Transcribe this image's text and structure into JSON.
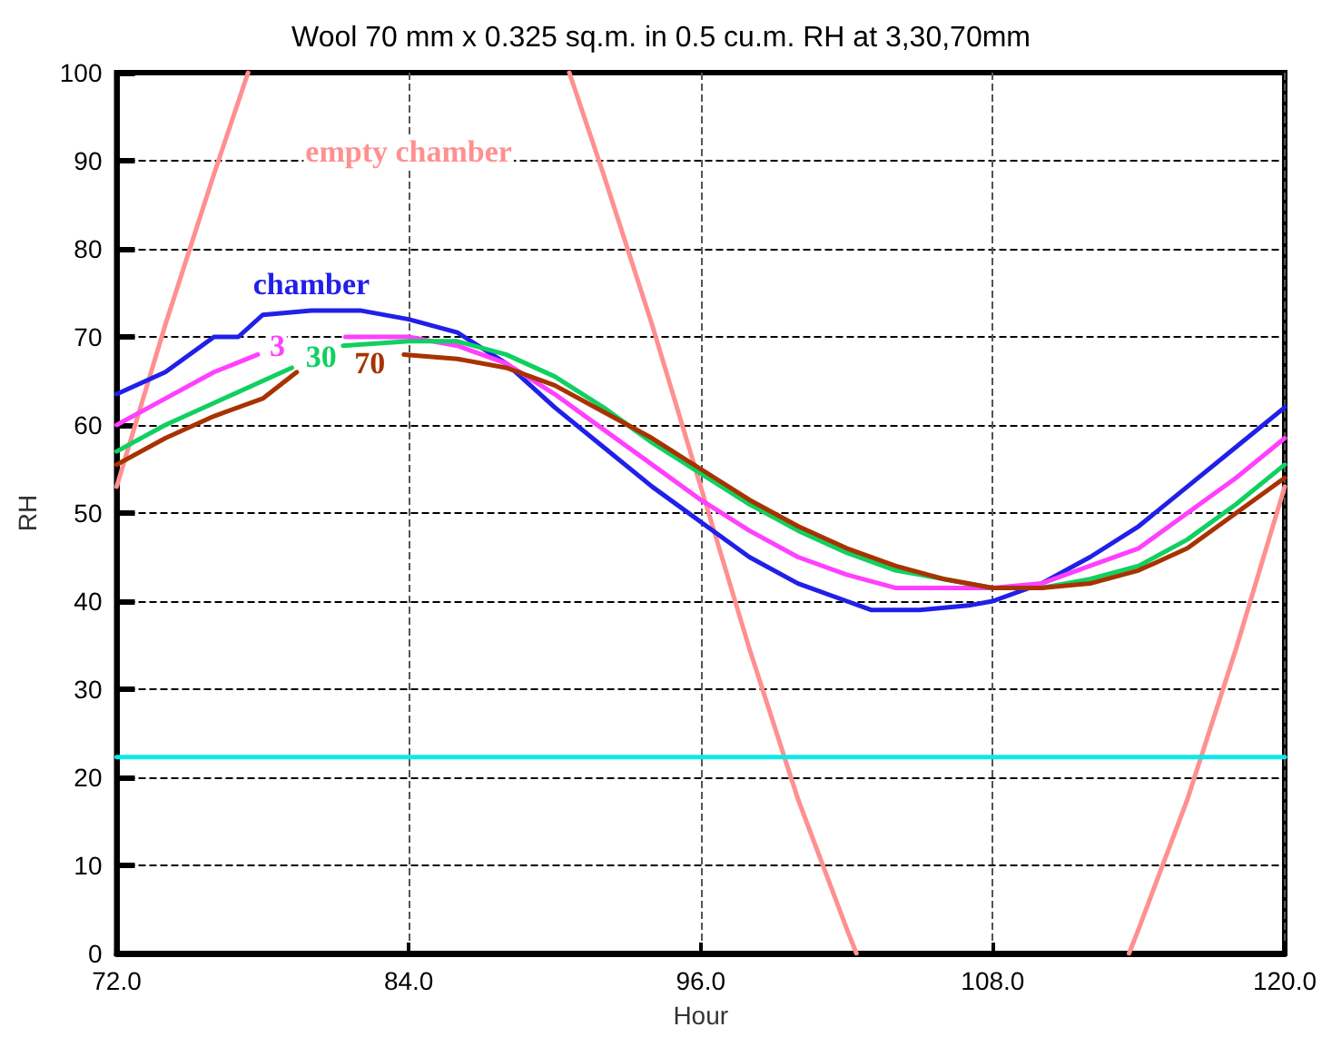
{
  "chart_data": {
    "type": "line",
    "title": "Wool 70 mm x 0.325 sq.m. in 0.5 cu.m. RH at 3,30,70mm",
    "xlabel": "Hour",
    "ylabel": "RH",
    "xlim": [
      72,
      120
    ],
    "xticks": [
      {
        "value": 72,
        "label": "72.0"
      },
      {
        "value": 84,
        "label": "84.0"
      },
      {
        "value": 96,
        "label": "96.0"
      },
      {
        "value": 108,
        "label": "108.0"
      },
      {
        "value": 120,
        "label": "120.0"
      }
    ],
    "ylim": [
      0,
      100
    ],
    "yticks": [
      0,
      10,
      20,
      30,
      40,
      50,
      60,
      70,
      80,
      90,
      100
    ],
    "grid": true,
    "legend": false,
    "marker": "none",
    "line_style": "solid",
    "series": [
      {
        "name": "empty chamber",
        "color": "#ff9090",
        "x": [
          72,
          74,
          76,
          77.4,
          84,
          90.6,
          92,
          94,
          96,
          98,
          100,
          102,
          102.4,
          108,
          113.6,
          114,
          116,
          118,
          120
        ],
        "values": [
          53,
          71.4,
          88.5,
          100,
          null,
          100,
          88.5,
          71.4,
          53,
          34.6,
          17.5,
          2.8,
          0,
          null,
          0,
          2.8,
          17.5,
          34.6,
          53
        ]
      },
      {
        "name": "chamber",
        "color": "#2020e8",
        "x": [
          72,
          74,
          76,
          77,
          78,
          80,
          82,
          84,
          86,
          88,
          90,
          92,
          94,
          96,
          98,
          100,
          102,
          103,
          105,
          107,
          108,
          110,
          112,
          114,
          116,
          118,
          120
        ],
        "values": [
          63.5,
          66,
          70,
          70,
          72.5,
          73,
          73,
          72,
          70.5,
          67,
          62,
          57.5,
          53,
          49,
          45,
          42,
          40,
          39,
          39,
          39.5,
          40,
          42,
          45,
          48.5,
          53,
          57.5,
          62
        ]
      },
      {
        "name": "3",
        "color": "#ff40ff",
        "x": [
          72,
          74,
          76,
          77.8,
          78.6,
          81.4,
          84,
          86,
          88,
          90,
          92,
          94,
          96,
          98,
          100,
          102,
          104,
          106,
          108,
          110,
          112,
          114,
          116,
          118,
          120
        ],
        "values": [
          60,
          63,
          66,
          68,
          null,
          70,
          70,
          69,
          67,
          63.5,
          59.5,
          55.5,
          51.5,
          48,
          45,
          43,
          41.5,
          41.5,
          41.5,
          42,
          44,
          46,
          50,
          54,
          58.5
        ]
      },
      {
        "name": "30",
        "color": "#10d060",
        "x": [
          72,
          74,
          76,
          78,
          79.2,
          80.4,
          81.3,
          84,
          86,
          88,
          90,
          92,
          94,
          96,
          98,
          100,
          102,
          104,
          106,
          108,
          110,
          112,
          114,
          116,
          118,
          120
        ],
        "values": [
          57,
          60,
          62.5,
          65,
          66.5,
          null,
          69,
          69.5,
          69.5,
          68,
          65.5,
          62,
          58,
          54.5,
          51,
          48,
          45.5,
          43.5,
          42.5,
          41.5,
          41.5,
          42.5,
          44,
          47,
          51,
          55.5
        ]
      },
      {
        "name": "70",
        "color": "#a83200",
        "x": [
          72,
          74,
          76,
          78,
          79.4,
          82.4,
          83.8,
          86,
          88,
          90,
          92,
          94,
          96,
          98,
          100,
          102,
          104,
          106,
          108,
          110,
          112,
          114,
          116,
          118,
          120
        ],
        "values": [
          55.5,
          58.5,
          61,
          63,
          66,
          null,
          68,
          67.5,
          66.5,
          64.5,
          61.5,
          58.5,
          55,
          51.5,
          48.5,
          46,
          44,
          42.5,
          41.5,
          41.5,
          42,
          43.5,
          46,
          50,
          54
        ]
      },
      {
        "color": "#10e8e8",
        "x": [
          72,
          120
        ],
        "values": [
          22.3,
          22.3
        ]
      }
    ]
  }
}
